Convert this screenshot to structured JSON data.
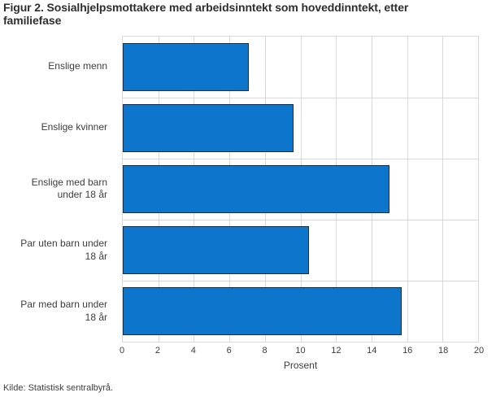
{
  "title": "Figur 2. Sosialhjelpsmottakere med arbeidsinntekt som hoveddinntekt, etter familiefase",
  "source": "Kilde: Statistisk sentralbyrå.",
  "colors": {
    "bar_fill": "#0d76cc",
    "bar_border": "#1e2f3c",
    "grid": "#d9d9d9",
    "title_text": "#2e2e2e",
    "label_text": "#3d3d3d"
  },
  "chart_data": {
    "type": "bar",
    "orientation": "horizontal",
    "categories": [
      "Enslige menn",
      "Enslige kvinner",
      "Enslige med barn under 18 år",
      "Par uten barn under 18 år",
      "Par med barn under 18 år"
    ],
    "values": [
      7.1,
      9.6,
      15.0,
      10.5,
      15.7
    ],
    "xlabel": "Prosent",
    "xlim": [
      0,
      20
    ],
    "xticks": [
      0,
      2,
      4,
      6,
      8,
      10,
      12,
      14,
      16,
      18,
      20
    ],
    "grid": true,
    "legend": "none"
  }
}
